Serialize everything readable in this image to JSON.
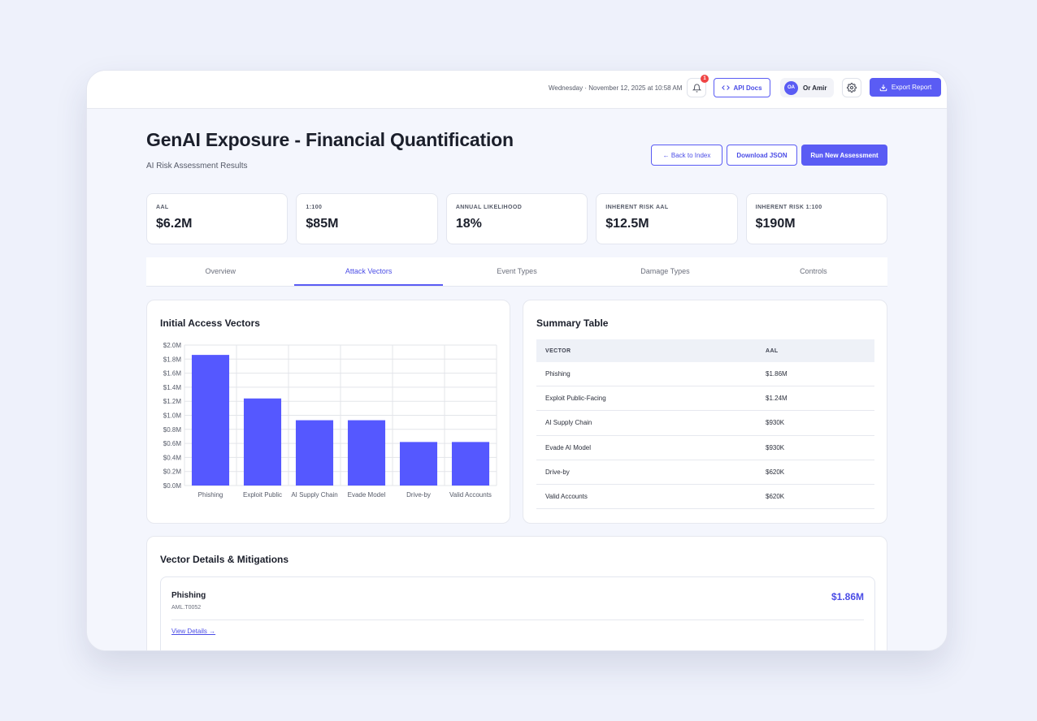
{
  "topbar": {
    "datetime": "Wednesday · November 12, 2025 at 10:58 AM",
    "notification_count": "1",
    "api_docs_label": "API Docs",
    "user_initials": "OA",
    "user_name": "Or Amir",
    "export_label": "Export Report"
  },
  "header": {
    "title": "GenAI Exposure - Financial Quantification",
    "subtitle": "AI Risk Assessment Results",
    "back_label": "← Back to Index",
    "download_label": "Download JSON",
    "run_label": "Run New Assessment"
  },
  "kpis": [
    {
      "label": "AAL",
      "value": "$6.2M"
    },
    {
      "label": "1:100",
      "value": "$85M"
    },
    {
      "label": "ANNUAL LIKELIHOOD",
      "value": "18%"
    },
    {
      "label": "INHERENT RISK AAL",
      "value": "$12.5M"
    },
    {
      "label": "INHERENT RISK 1:100",
      "value": "$190M"
    }
  ],
  "tabs": [
    {
      "label": "Overview"
    },
    {
      "label": "Attack Vectors",
      "active": true
    },
    {
      "label": "Event Types"
    },
    {
      "label": "Damage Types"
    },
    {
      "label": "Controls"
    }
  ],
  "chart_card": {
    "title": "Initial Access Vectors"
  },
  "chart_data": {
    "type": "bar",
    "title": "Initial Access Vectors",
    "categories": [
      "Phishing",
      "Exploit Public",
      "AI Supply Chain",
      "Evade Model",
      "Drive-by",
      "Valid Accounts"
    ],
    "values": [
      1.86,
      1.24,
      0.93,
      0.93,
      0.62,
      0.62
    ],
    "ylim": [
      0,
      2.0
    ],
    "yticks": [
      "$0.0M",
      "$0.2M",
      "$0.4M",
      "$0.6M",
      "$0.8M",
      "$1.0M",
      "$1.2M",
      "$1.4M",
      "$1.6M",
      "$1.8M",
      "$2.0M"
    ],
    "color": "#5558ff",
    "grid": true
  },
  "summary_table": {
    "title": "Summary Table",
    "columns": [
      "VECTOR",
      "AAL"
    ],
    "rows": [
      [
        "Phishing",
        "$1.86M"
      ],
      [
        "Exploit Public-Facing",
        "$1.24M"
      ],
      [
        "AI Supply Chain",
        "$930K"
      ],
      [
        "Evade AI Model",
        "$930K"
      ],
      [
        "Drive-by",
        "$620K"
      ],
      [
        "Valid Accounts",
        "$620K"
      ]
    ]
  },
  "details": {
    "title": "Vector Details & Mitigations",
    "items": [
      {
        "name": "Phishing",
        "id": "AML.T0052",
        "value": "$1.86M",
        "link": "View Details →"
      }
    ]
  }
}
